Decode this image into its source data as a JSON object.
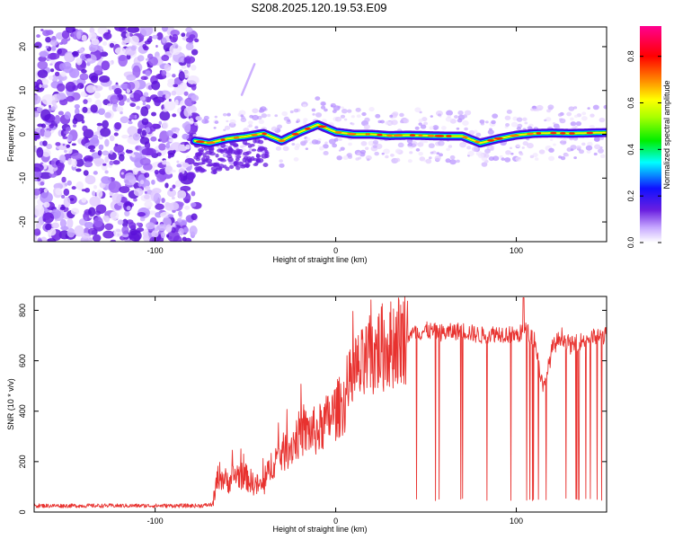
{
  "title": "S208.2025.120.19.53.E09",
  "colors": {
    "snr_line": "#e8322f",
    "noise": "#6a1fe0",
    "background": "#ffffff",
    "frame": "#000000"
  },
  "chart_data": [
    {
      "type": "heatmap",
      "title": "",
      "xlabel": "Height of straight line (km)",
      "ylabel": "Frequency (Hz)",
      "xlim": [
        -167,
        150
      ],
      "ylim": [
        -24.5,
        24.5
      ],
      "xticks": [
        -100,
        0,
        100
      ],
      "yticks": [
        -20,
        -10,
        0,
        10,
        20
      ],
      "grid": false,
      "colorbar": {
        "label": "Normalized spectral amplitude",
        "range": [
          0.0,
          0.93
        ],
        "ticks": [
          "0.0",
          "0.2",
          "0.4",
          "0.6",
          "0.8"
        ],
        "colormap": "white-purple-blue-cyan-green-yellow-red-magenta"
      },
      "noise_region_x": [
        -167,
        -77
      ],
      "signal_ridge": {
        "x": [
          -78,
          -70,
          -60,
          -50,
          -40,
          -30,
          -20,
          -10,
          0,
          10,
          20,
          30,
          40,
          50,
          60,
          70,
          80,
          90,
          100,
          110,
          120,
          130,
          140,
          150
        ],
        "freq": [
          -1.5,
          -2.0,
          -1.0,
          -0.5,
          0.2,
          -1.5,
          0.5,
          2.2,
          0.5,
          0.0,
          0.0,
          -0.3,
          -0.2,
          -0.3,
          -0.4,
          -0.4,
          -2.0,
          -1.0,
          -0.2,
          0.2,
          0.3,
          0.2,
          0.3,
          0.4
        ]
      }
    },
    {
      "type": "line",
      "title": "",
      "xlabel": "Height of straight line (km)",
      "ylabel": "SNR (10 * v/v)",
      "xlim": [
        -167,
        150
      ],
      "ylim": [
        0,
        855
      ],
      "xticks": [
        -100,
        0,
        100
      ],
      "yticks": [
        0,
        200,
        400,
        600,
        800
      ],
      "grid": false,
      "series": [
        {
          "x": [
            -167,
            -150,
            -130,
            -110,
            -90,
            -75,
            -68,
            -65,
            -60,
            -55,
            -50,
            -45,
            -40,
            -35,
            -30,
            -25,
            -20,
            -15,
            -10,
            -5,
            0,
            5,
            10,
            15,
            20,
            25,
            30,
            35,
            40,
            50,
            60,
            70,
            80,
            90,
            100,
            105,
            110,
            115,
            120,
            125,
            130,
            140,
            150
          ],
          "values": [
            25,
            25,
            25,
            25,
            25,
            25,
            30,
            150,
            120,
            150,
            140,
            110,
            100,
            200,
            230,
            260,
            310,
            320,
            320,
            360,
            400,
            440,
            550,
            570,
            620,
            650,
            660,
            690,
            700,
            720,
            710,
            720,
            700,
            710,
            700,
            720,
            690,
            480,
            650,
            700,
            660,
            690,
            700
          ]
        }
      ],
      "dropouts_x_range": [
        40,
        150
      ],
      "dropout_value": 45
    }
  ]
}
